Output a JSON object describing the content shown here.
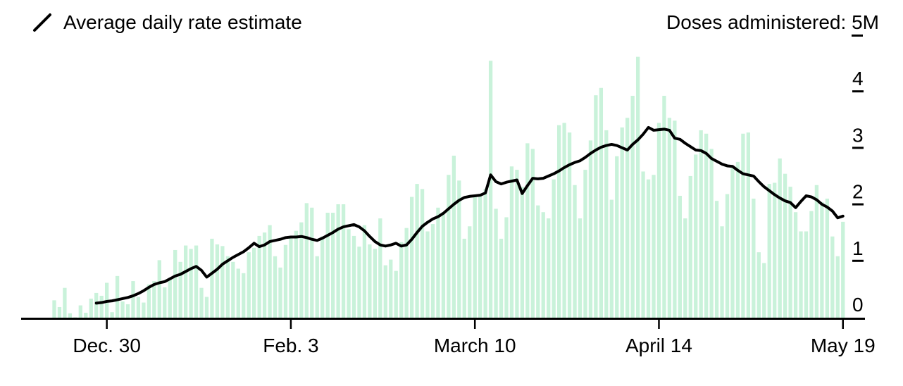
{
  "legend": {
    "label": "Average daily rate estimate"
  },
  "header": {
    "prefix": "Doses administered:",
    "max_value": "5",
    "unit_suffix": "M"
  },
  "chart_data": {
    "type": "bar+line",
    "title": "Doses administered",
    "unit": "millions of doses per day",
    "x_start": "Dec. 20",
    "x_end": "May 19",
    "x_tick_labels": [
      "Dec. 30",
      "Feb. 3",
      "March 10",
      "April 14",
      "May 19"
    ],
    "x_tick_day_indices": [
      10,
      45,
      80,
      115,
      150
    ],
    "ylim": [
      0,
      5
    ],
    "y_tick_values": [
      0,
      1,
      2,
      3,
      4
    ],
    "y_max_label": "5M",
    "grid": false,
    "legend_position": "top-left",
    "colors": {
      "bar": "#c9f2da",
      "line": "#000000",
      "axis": "#000000",
      "background": "#ffffff"
    },
    "series": [
      {
        "name": "Doses administered",
        "type": "bar",
        "color": "#c9f2da",
        "values": [
          0.32,
          0.2,
          0.54,
          0.09,
          0.02,
          0.23,
          0.1,
          0.35,
          0.45,
          0.4,
          0.63,
          0.11,
          0.75,
          0.3,
          0.25,
          0.66,
          0.38,
          0.28,
          0.6,
          0.66,
          1.03,
          0.55,
          0.7,
          1.21,
          1.0,
          1.29,
          1.23,
          1.29,
          0.54,
          0.38,
          1.41,
          1.31,
          1.28,
          1.1,
          1.0,
          0.88,
          0.8,
          1.17,
          1.25,
          1.46,
          1.52,
          1.65,
          1.1,
          0.9,
          1.3,
          1.45,
          1.55,
          1.7,
          2.04,
          1.96,
          1.1,
          1.45,
          1.87,
          1.87,
          2.02,
          2.02,
          1.58,
          1.46,
          1.27,
          1.65,
          1.31,
          1.23,
          1.77,
          0.94,
          1.04,
          0.84,
          1.35,
          1.6,
          2.15,
          2.38,
          2.29,
          1.54,
          1.67,
          1.96,
          1.88,
          2.54,
          2.88,
          2.44,
          1.41,
          1.63,
          2.17,
          2.17,
          2.29,
          4.56,
          1.94,
          1.41,
          1.79,
          2.69,
          2.63,
          2.33,
          3.1,
          3.0,
          2.0,
          1.88,
          1.77,
          2.46,
          3.42,
          3.46,
          3.29,
          2.36,
          1.77,
          2.63,
          3.15,
          3.95,
          4.08,
          3.33,
          2.1,
          2.87,
          3.38,
          3.55,
          3.94,
          4.63,
          2.6,
          2.46,
          2.54,
          3.46,
          3.94,
          3.55,
          3.5,
          2.17,
          1.77,
          2.52,
          2.9,
          3.33,
          3.27,
          3.0,
          2.08,
          1.63,
          2.2,
          2.7,
          2.77,
          3.27,
          3.29,
          2.12,
          1.17,
          0.98,
          2.38,
          2.4,
          2.83,
          2.56,
          2.33,
          1.88,
          1.54,
          1.54,
          1.9,
          2.36,
          2.06,
          2.12,
          1.45,
          1.1,
          1.71
        ]
      },
      {
        "name": "Average daily rate estimate",
        "type": "line",
        "color": "#000000",
        "values": [
          null,
          null,
          null,
          null,
          null,
          null,
          null,
          null,
          0.27,
          0.28,
          0.3,
          0.31,
          0.33,
          0.35,
          0.37,
          0.4,
          0.44,
          0.49,
          0.55,
          0.6,
          0.63,
          0.65,
          0.7,
          0.75,
          0.78,
          0.83,
          0.88,
          0.92,
          0.85,
          0.73,
          0.8,
          0.87,
          0.96,
          1.02,
          1.08,
          1.13,
          1.18,
          1.25,
          1.33,
          1.27,
          1.3,
          1.36,
          1.38,
          1.4,
          1.43,
          1.44,
          1.44,
          1.45,
          1.43,
          1.4,
          1.38,
          1.42,
          1.47,
          1.52,
          1.58,
          1.62,
          1.64,
          1.66,
          1.62,
          1.55,
          1.45,
          1.36,
          1.3,
          1.28,
          1.3,
          1.33,
          1.28,
          1.3,
          1.4,
          1.52,
          1.63,
          1.7,
          1.76,
          1.8,
          1.86,
          1.94,
          2.02,
          2.09,
          2.14,
          2.16,
          2.17,
          2.18,
          2.22,
          2.54,
          2.42,
          2.38,
          2.41,
          2.43,
          2.45,
          2.21,
          2.35,
          2.48,
          2.47,
          2.48,
          2.52,
          2.56,
          2.61,
          2.67,
          2.72,
          2.76,
          2.79,
          2.85,
          2.92,
          2.98,
          3.03,
          3.06,
          3.08,
          3.06,
          3.02,
          2.98,
          3.08,
          3.16,
          3.26,
          3.38,
          3.33,
          3.34,
          3.35,
          3.33,
          3.19,
          3.17,
          3.1,
          3.04,
          2.98,
          2.97,
          2.92,
          2.83,
          2.78,
          2.73,
          2.7,
          2.69,
          2.62,
          2.56,
          2.54,
          2.52,
          2.42,
          2.33,
          2.26,
          2.19,
          2.13,
          2.08,
          2.05,
          1.96,
          2.07,
          2.17,
          2.15,
          2.1,
          2.02,
          1.97,
          1.9,
          1.78,
          1.81
        ]
      }
    ]
  }
}
